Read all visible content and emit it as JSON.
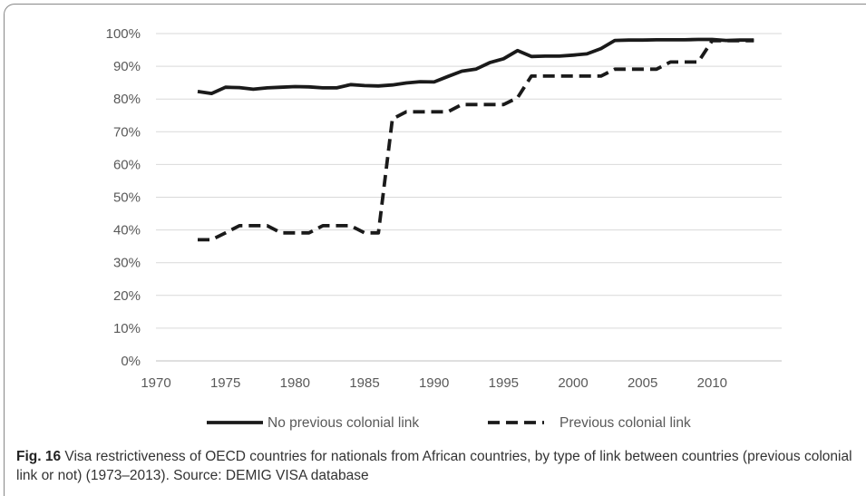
{
  "chart_data": {
    "type": "line",
    "xlim": [
      1970,
      2015
    ],
    "ylim": [
      0,
      100
    ],
    "x_ticks": [
      "1970",
      "1975",
      "1980",
      "1985",
      "1990",
      "1995",
      "2000",
      "2005",
      "2010"
    ],
    "y_ticks": [
      "0%",
      "10%",
      "20%",
      "30%",
      "40%",
      "50%",
      "60%",
      "70%",
      "80%",
      "90%",
      "100%"
    ],
    "grid": true,
    "legend_position": "bottom",
    "series": [
      {
        "name": "No previous colonial link",
        "style": "solid",
        "color": "#1a1a1a",
        "x": [
          1973,
          1974,
          1975,
          1976,
          1977,
          1978,
          1979,
          1980,
          1981,
          1982,
          1983,
          1984,
          1985,
          1986,
          1987,
          1988,
          1989,
          1990,
          1991,
          1992,
          1993,
          1994,
          1995,
          1996,
          1997,
          1998,
          1999,
          2000,
          2001,
          2002,
          2003,
          2004,
          2005,
          2006,
          2007,
          2008,
          2009,
          2010,
          2011,
          2012,
          2013
        ],
        "values": [
          82.3,
          81.7,
          83.6,
          83.5,
          83.0,
          83.4,
          83.6,
          83.8,
          83.7,
          83.4,
          83.4,
          84.4,
          84.1,
          84.0,
          84.3,
          84.9,
          85.3,
          85.2,
          86.9,
          88.5,
          89.1,
          91.1,
          92.3,
          94.8,
          93.0,
          93.1,
          93.1,
          93.4,
          93.8,
          95.4,
          97.9,
          98.0,
          98.0,
          98.1,
          98.1,
          98.1,
          98.2,
          98.2,
          97.9,
          98.0,
          98.0
        ]
      },
      {
        "name": "Previous colonial link",
        "style": "dashed",
        "color": "#1a1a1a",
        "x": [
          1973,
          1974,
          1975,
          1976,
          1977,
          1978,
          1979,
          1980,
          1981,
          1982,
          1983,
          1984,
          1985,
          1986,
          1987,
          1988,
          1989,
          1990,
          1991,
          1992,
          1993,
          1994,
          1995,
          1996,
          1997,
          1998,
          1999,
          2000,
          2001,
          2002,
          2003,
          2004,
          2005,
          2006,
          2007,
          2008,
          2009,
          2010,
          2011,
          2012,
          2013
        ],
        "values": [
          37.0,
          37.0,
          39.1,
          41.3,
          41.3,
          41.3,
          39.1,
          39.1,
          39.1,
          41.3,
          41.3,
          41.3,
          39.1,
          39.1,
          73.9,
          76.1,
          76.1,
          76.1,
          76.1,
          78.3,
          78.3,
          78.3,
          78.3,
          80.4,
          87.0,
          87.0,
          87.0,
          87.0,
          87.0,
          87.0,
          89.1,
          89.1,
          89.1,
          89.1,
          91.3,
          91.3,
          91.3,
          97.8,
          97.8,
          97.8,
          97.8
        ]
      }
    ]
  },
  "caption": {
    "label": "Fig. 16",
    "text": "Visa restrictiveness of OECD countries for nationals from African countries, by type of link between countries (previous colonial link or not) (1973–2013). Source: DEMIG VISA database"
  }
}
